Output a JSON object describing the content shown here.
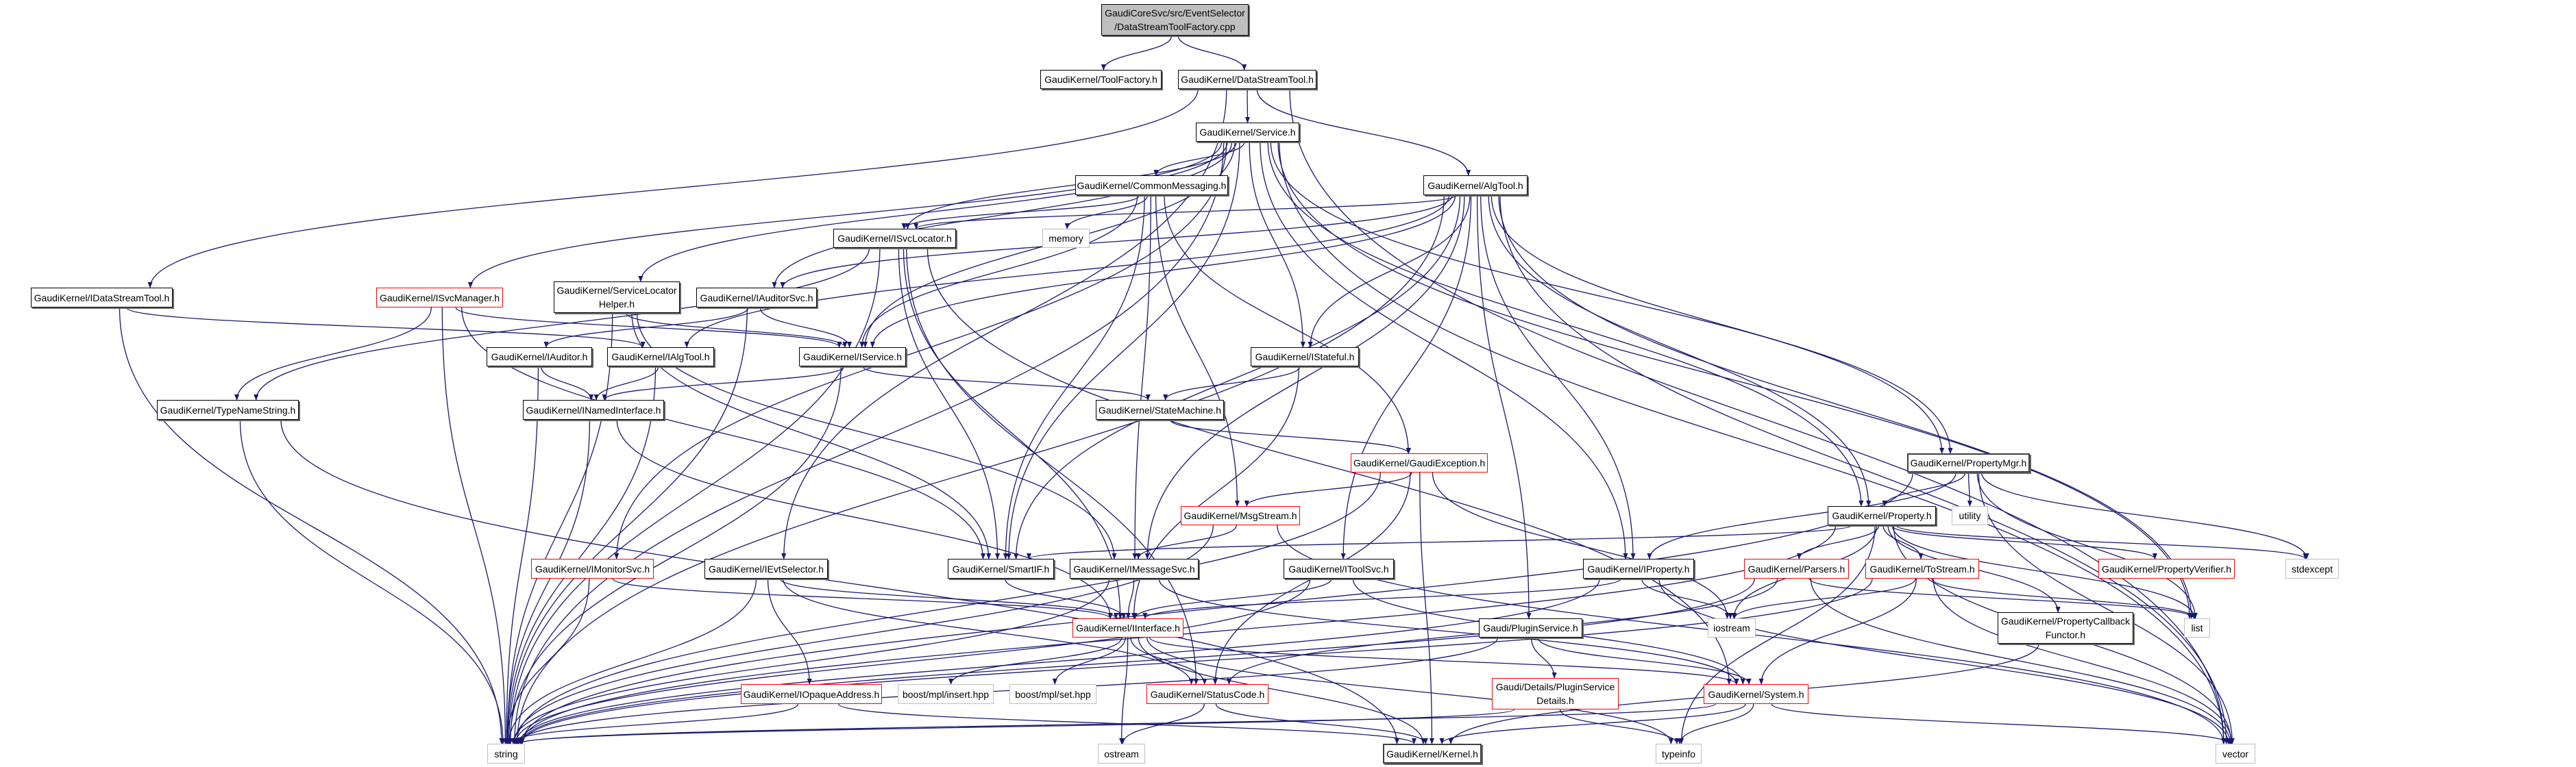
{
  "colors": {
    "edge": "#191970",
    "red_border": "#ff0000",
    "gray_border": "#bfbfbf",
    "root_fill": "#bfbfbf"
  },
  "nodes": [
    {
      "id": "root",
      "label": "GaudiCoreSvc/src/EventSelector\n/DataStreamToolFactory.cpp",
      "kind": "root"
    },
    {
      "id": "tf",
      "label": "GaudiKernel/ToolFactory.h",
      "kind": "normal"
    },
    {
      "id": "dst",
      "label": "GaudiKernel/DataStreamTool.h",
      "kind": "normal"
    },
    {
      "id": "svc",
      "label": "GaudiKernel/Service.h",
      "kind": "normal"
    },
    {
      "id": "cm",
      "label": "GaudiKernel/CommonMessaging.h",
      "kind": "normal"
    },
    {
      "id": "algtool",
      "label": "GaudiKernel/AlgTool.h",
      "kind": "normal"
    },
    {
      "id": "isvcloc",
      "label": "GaudiKernel/ISvcLocator.h",
      "kind": "normal"
    },
    {
      "id": "memory",
      "label": "memory",
      "kind": "gray"
    },
    {
      "id": "idst",
      "label": "GaudiKernel/IDataStreamTool.h",
      "kind": "normal"
    },
    {
      "id": "isvcmgr",
      "label": "GaudiKernel/ISvcManager.h",
      "kind": "red"
    },
    {
      "id": "slh",
      "label": "GaudiKernel/ServiceLocator\nHelper.h",
      "kind": "normal"
    },
    {
      "id": "iauditorsvc",
      "label": "GaudiKernel/IAuditorSvc.h",
      "kind": "normal"
    },
    {
      "id": "iservice",
      "label": "GaudiKernel/IService.h",
      "kind": "normal"
    },
    {
      "id": "istateful",
      "label": "GaudiKernel/IStateful.h",
      "kind": "normal"
    },
    {
      "id": "iauditor",
      "label": "GaudiKernel/IAuditor.h",
      "kind": "normal"
    },
    {
      "id": "ialgtool",
      "label": "GaudiKernel/IAlgTool.h",
      "kind": "normal"
    },
    {
      "id": "typename",
      "label": "GaudiKernel/TypeNameString.h",
      "kind": "normal"
    },
    {
      "id": "inamed",
      "label": "GaudiKernel/INamedInterface.h",
      "kind": "normal"
    },
    {
      "id": "statemachine",
      "label": "GaudiKernel/StateMachine.h",
      "kind": "normal"
    },
    {
      "id": "propmgr",
      "label": "GaudiKernel/PropertyMgr.h",
      "kind": "dark"
    },
    {
      "id": "gexc",
      "label": "GaudiKernel/GaudiException.h",
      "kind": "red"
    },
    {
      "id": "utility",
      "label": "utility",
      "kind": "gray"
    },
    {
      "id": "property",
      "label": "GaudiKernel/Property.h",
      "kind": "normal"
    },
    {
      "id": "msgstream",
      "label": "GaudiKernel/MsgStream.h",
      "kind": "red"
    },
    {
      "id": "propverifier",
      "label": "GaudiKernel/PropertyVerifier.h",
      "kind": "red"
    },
    {
      "id": "stdexcept",
      "label": "stdexcept",
      "kind": "gray"
    },
    {
      "id": "imonitorsvc",
      "label": "GaudiKernel/IMonitorSvc.h",
      "kind": "red"
    },
    {
      "id": "ievtsel",
      "label": "GaudiKernel/IEvtSelector.h",
      "kind": "normal"
    },
    {
      "id": "smartif",
      "label": "GaudiKernel/SmartIF.h",
      "kind": "normal"
    },
    {
      "id": "imessagesvc",
      "label": "GaudiKernel/IMessageSvc.h",
      "kind": "normal"
    },
    {
      "id": "itoolsvc",
      "label": "GaudiKernel/IToolSvc.h",
      "kind": "normal"
    },
    {
      "id": "iproperty",
      "label": "GaudiKernel/IProperty.h",
      "kind": "normal"
    },
    {
      "id": "parsers",
      "label": "GaudiKernel/Parsers.h",
      "kind": "red"
    },
    {
      "id": "tostream",
      "label": "GaudiKernel/ToStream.h",
      "kind": "red"
    },
    {
      "id": "iostream",
      "label": "iostream",
      "kind": "gray"
    },
    {
      "id": "list",
      "label": "list",
      "kind": "gray"
    },
    {
      "id": "propcb",
      "label": "GaudiKernel/PropertyCallback\nFunctor.h",
      "kind": "normal"
    },
    {
      "id": "iinterface",
      "label": "GaudiKernel/IInterface.h",
      "kind": "red"
    },
    {
      "id": "pluginsvc",
      "label": "Gaudi/PluginService.h",
      "kind": "normal"
    },
    {
      "id": "iopaque",
      "label": "GaudiKernel/IOpaqueAddress.h",
      "kind": "red"
    },
    {
      "id": "insert",
      "label": "boost/mpl/insert.hpp",
      "kind": "gray"
    },
    {
      "id": "set",
      "label": "boost/mpl/set.hpp",
      "kind": "gray"
    },
    {
      "id": "statuscode",
      "label": "GaudiKernel/StatusCode.h",
      "kind": "red"
    },
    {
      "id": "details",
      "label": "Gaudi/Details/PluginService\nDetails.h",
      "kind": "red"
    },
    {
      "id": "system",
      "label": "GaudiKernel/System.h",
      "kind": "red"
    },
    {
      "id": "string",
      "label": "string",
      "kind": "gray"
    },
    {
      "id": "ostream",
      "label": "ostream",
      "kind": "gray"
    },
    {
      "id": "kernel",
      "label": "GaudiKernel/Kernel.h",
      "kind": "dark"
    },
    {
      "id": "typeinfo",
      "label": "typeinfo",
      "kind": "gray"
    },
    {
      "id": "vector",
      "label": "vector",
      "kind": "gray"
    }
  ],
  "edges": [
    [
      "root",
      "tf"
    ],
    [
      "root",
      "dst"
    ],
    [
      "dst",
      "svc"
    ],
    [
      "dst",
      "algtool"
    ],
    [
      "dst",
      "idst"
    ],
    [
      "dst",
      "ievtsel"
    ],
    [
      "dst",
      "vector"
    ],
    [
      "svc",
      "cm"
    ],
    [
      "svc",
      "isvcloc"
    ],
    [
      "svc",
      "iservice"
    ],
    [
      "svc",
      "istateful"
    ],
    [
      "svc",
      "isvcmgr"
    ],
    [
      "svc",
      "slh"
    ],
    [
      "svc",
      "iauditorsvc"
    ],
    [
      "svc",
      "smartif"
    ],
    [
      "svc",
      "propmgr"
    ],
    [
      "svc",
      "property"
    ],
    [
      "svc",
      "iproperty"
    ],
    [
      "svc",
      "imonitorsvc"
    ],
    [
      "svc",
      "string"
    ],
    [
      "svc",
      "vector"
    ],
    [
      "svc",
      "list"
    ],
    [
      "cm",
      "isvcloc"
    ],
    [
      "cm",
      "memory"
    ],
    [
      "cm",
      "iservice"
    ],
    [
      "cm",
      "smartif"
    ],
    [
      "cm",
      "imessagesvc"
    ],
    [
      "cm",
      "msgstream"
    ],
    [
      "cm",
      "gexc"
    ],
    [
      "algtool",
      "isvcloc"
    ],
    [
      "algtool",
      "iservice"
    ],
    [
      "algtool",
      "iauditorsvc"
    ],
    [
      "algtool",
      "ialgtool"
    ],
    [
      "algtool",
      "istateful"
    ],
    [
      "algtool",
      "propmgr"
    ],
    [
      "algtool",
      "property"
    ],
    [
      "algtool",
      "iproperty"
    ],
    [
      "algtool",
      "imessagesvc"
    ],
    [
      "algtool",
      "itoolsvc"
    ],
    [
      "algtool",
      "smartif"
    ],
    [
      "algtool",
      "pluginsvc"
    ],
    [
      "algtool",
      "vector"
    ],
    [
      "algtool",
      "string"
    ],
    [
      "algtool",
      "list"
    ],
    [
      "isvcloc",
      "typename"
    ],
    [
      "isvcloc",
      "iinterface"
    ],
    [
      "isvcloc",
      "smartif"
    ],
    [
      "isvcloc",
      "statuscode"
    ],
    [
      "isvcloc",
      "string"
    ],
    [
      "isvcloc",
      "system"
    ],
    [
      "isvcmgr",
      "typename"
    ],
    [
      "isvcmgr",
      "iservice"
    ],
    [
      "isvcmgr",
      "smartif"
    ],
    [
      "isvcmgr",
      "string"
    ],
    [
      "slh",
      "iservice"
    ],
    [
      "slh",
      "smartif"
    ],
    [
      "slh",
      "imessagesvc"
    ],
    [
      "slh",
      "string"
    ],
    [
      "iauditorsvc",
      "iauditor"
    ],
    [
      "iauditorsvc",
      "iservice"
    ],
    [
      "iauditorsvc",
      "string"
    ],
    [
      "idst",
      "ialgtool"
    ],
    [
      "idst",
      "string"
    ],
    [
      "iservice",
      "inamed"
    ],
    [
      "iservice",
      "statemachine"
    ],
    [
      "iservice",
      "string"
    ],
    [
      "istateful",
      "statemachine"
    ],
    [
      "istateful",
      "iinterface"
    ],
    [
      "iauditor",
      "inamed"
    ],
    [
      "iauditor",
      "string"
    ],
    [
      "ialgtool",
      "inamed"
    ],
    [
      "ialgtool",
      "string"
    ],
    [
      "typename",
      "string"
    ],
    [
      "typename",
      "kernel"
    ],
    [
      "inamed",
      "iinterface"
    ],
    [
      "inamed",
      "string"
    ],
    [
      "statemachine",
      "gexc"
    ],
    [
      "propmgr",
      "property"
    ],
    [
      "propmgr",
      "utility"
    ],
    [
      "propmgr",
      "iproperty"
    ],
    [
      "propmgr",
      "stdexcept"
    ],
    [
      "propmgr",
      "vector"
    ],
    [
      "propmgr",
      "list"
    ],
    [
      "propmgr",
      "string"
    ],
    [
      "gexc",
      "msgstream"
    ],
    [
      "gexc",
      "statuscode"
    ],
    [
      "gexc",
      "kernel"
    ],
    [
      "gexc",
      "string"
    ],
    [
      "gexc",
      "iostream"
    ],
    [
      "property",
      "parsers"
    ],
    [
      "property",
      "tostream"
    ],
    [
      "property",
      "propverifier"
    ],
    [
      "property",
      "stdexcept"
    ],
    [
      "property",
      "propcb"
    ],
    [
      "property",
      "smartif"
    ],
    [
      "property",
      "string"
    ],
    [
      "property",
      "vector"
    ],
    [
      "property",
      "list"
    ],
    [
      "property",
      "iostream"
    ],
    [
      "property",
      "typeinfo"
    ],
    [
      "msgstream",
      "imessagesvc"
    ],
    [
      "msgstream",
      "string"
    ],
    [
      "msgstream",
      "vector"
    ],
    [
      "imonitorsvc",
      "iinterface"
    ],
    [
      "imonitorsvc",
      "string"
    ],
    [
      "ievtsel",
      "iinterface"
    ],
    [
      "ievtsel",
      "iopaque"
    ],
    [
      "ievtsel",
      "statuscode"
    ],
    [
      "ievtsel",
      "string"
    ],
    [
      "smartif",
      "iinterface"
    ],
    [
      "imessagesvc",
      "iinterface"
    ],
    [
      "imessagesvc",
      "string"
    ],
    [
      "imessagesvc",
      "system"
    ],
    [
      "itoolsvc",
      "iinterface"
    ],
    [
      "itoolsvc",
      "string"
    ],
    [
      "itoolsvc",
      "system"
    ],
    [
      "iproperty",
      "iinterface"
    ],
    [
      "iproperty",
      "string"
    ],
    [
      "iproperty",
      "iostream"
    ],
    [
      "iproperty",
      "vector"
    ],
    [
      "parsers",
      "statuscode"
    ],
    [
      "parsers",
      "string"
    ],
    [
      "parsers",
      "vector"
    ],
    [
      "parsers",
      "list"
    ],
    [
      "tostream",
      "iostream"
    ],
    [
      "tostream",
      "list"
    ],
    [
      "tostream",
      "vector"
    ],
    [
      "tostream",
      "string"
    ],
    [
      "tostream",
      "system"
    ],
    [
      "propcb",
      "kernel"
    ],
    [
      "iinterface",
      "insert"
    ],
    [
      "iinterface",
      "set"
    ],
    [
      "iinterface",
      "statuscode"
    ],
    [
      "iinterface",
      "kernel"
    ],
    [
      "iinterface",
      "ostream"
    ],
    [
      "iinterface",
      "system"
    ],
    [
      "iinterface",
      "typeinfo"
    ],
    [
      "pluginsvc",
      "details"
    ],
    [
      "pluginsvc",
      "system"
    ],
    [
      "pluginsvc",
      "string"
    ],
    [
      "details",
      "typeinfo"
    ],
    [
      "details",
      "string"
    ],
    [
      "iopaque",
      "string"
    ],
    [
      "iopaque",
      "kernel"
    ],
    [
      "statuscode",
      "ostream"
    ],
    [
      "statuscode",
      "kernel"
    ],
    [
      "system",
      "kernel"
    ],
    [
      "system",
      "string"
    ],
    [
      "system",
      "typeinfo"
    ],
    [
      "system",
      "vector"
    ]
  ]
}
